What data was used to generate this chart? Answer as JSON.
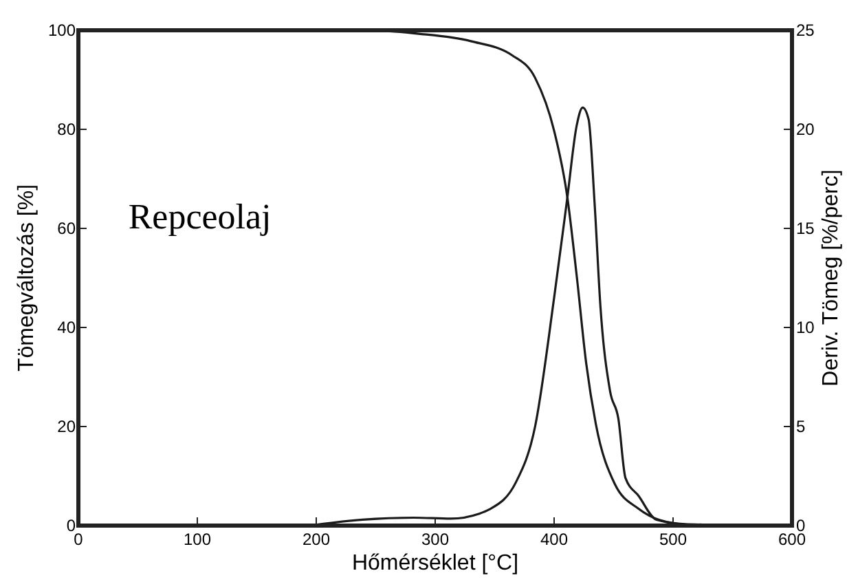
{
  "chart_data": {
    "type": "line",
    "xlabel": "Hőmérséklet [°C]",
    "ylabel": "Tömegváltozás [%]",
    "y2label": "Deriv. Tömeg [%/perc]",
    "annotations": [
      "Repceolaj"
    ],
    "xlim": [
      0,
      600
    ],
    "xticks": [
      0,
      100,
      200,
      300,
      400,
      500,
      600
    ],
    "ylim": [
      0,
      100
    ],
    "yticks": [
      0,
      20,
      40,
      60,
      80,
      100
    ],
    "y2lim": [
      0,
      25
    ],
    "y2ticks": [
      0,
      5,
      10,
      15,
      20,
      25
    ],
    "grid": false,
    "series": [
      {
        "color": "#1a1a1a",
        "x": [
          200,
          250,
          286,
          330,
          365,
          384,
          400,
          411,
          419,
          427,
          435,
          451,
          471,
          489,
          510,
          525
        ],
        "values": [
          100,
          99.9,
          99.3,
          97.8,
          94.9,
          90.4,
          79.7,
          66.5,
          50.4,
          32.7,
          20.6,
          8.4,
          3.4,
          1.1,
          0.3,
          0.2
        ]
      },
      {
        "color": "#1a1a1a",
        "axis": "y2",
        "x": [
          195,
          239,
          282,
          313,
          337,
          345,
          368,
          384,
          400,
          411,
          419,
          424,
          429,
          434,
          439,
          447,
          454,
          460,
          471,
          486,
          521
        ],
        "values": [
          0,
          0.3,
          0.4,
          0.35,
          0.6,
          0.8,
          2.2,
          5,
          11.5,
          16.5,
          20.2,
          21.1,
          20.5,
          16.3,
          11,
          6.8,
          5.4,
          2.4,
          1.5,
          0.3,
          0
        ]
      }
    ]
  }
}
